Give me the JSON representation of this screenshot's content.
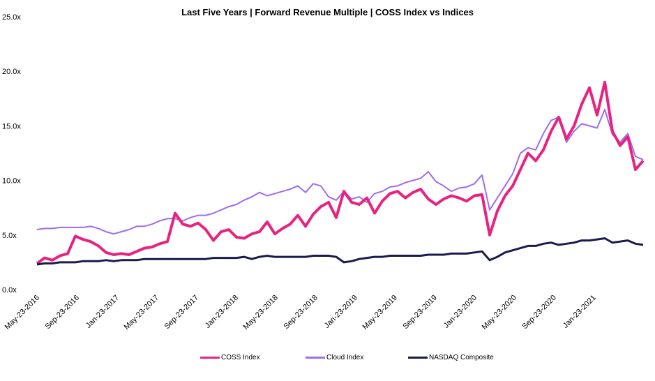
{
  "chart_data": {
    "type": "line",
    "title": "Last Five Years | Forward Revenue Multiple | COSS Index vs Indices",
    "y_tick_labels": [
      "0.0x",
      "5.0x",
      "10.0x",
      "15.0x",
      "20.0x",
      "25.0x"
    ],
    "ylim": [
      0,
      25
    ],
    "x_tick_labels": [
      "May-23-2016",
      "Sep-23-2016",
      "Jan-23-2017",
      "May-23-2017",
      "Sep-23-2017",
      "Jan-23-2018",
      "May-23-2018",
      "Sep-23-2018",
      "Jan-23-2019",
      "May-23-2019",
      "Sep-23-2019",
      "Jan-23-2020",
      "May-23-2020",
      "Sep-23-2020",
      "Jan-23-2021"
    ],
    "x_index_range": [
      0,
      61
    ],
    "series": [
      {
        "name": "COSS Index",
        "color": "#e8237f",
        "values": [
          2.4,
          2.9,
          2.7,
          3.1,
          3.3,
          4.9,
          4.6,
          4.4,
          4.0,
          3.4,
          3.2,
          3.3,
          3.2,
          3.5,
          3.8,
          3.9,
          4.2,
          4.4,
          7.0,
          6.0,
          5.8,
          6.1,
          5.5,
          4.5,
          5.3,
          5.5,
          4.8,
          4.7,
          5.1,
          5.3,
          6.2,
          5.1,
          5.6,
          6.0,
          6.8,
          5.8,
          6.9,
          7.6,
          8.0,
          6.6,
          9.0,
          8.0,
          7.8,
          8.4,
          7.0,
          8.1,
          8.8,
          9.0,
          8.4,
          8.9,
          9.2,
          8.3,
          7.8,
          8.3,
          8.6,
          8.4,
          8.1,
          8.6,
          8.7,
          5.0,
          7.2,
          8.6,
          9.5,
          11.0,
          12.5,
          11.8,
          12.8,
          14.5,
          15.8,
          13.8,
          15.0,
          17.0,
          18.5,
          16.0,
          19.0,
          14.5,
          13.2,
          14.0,
          11.0,
          11.8
        ]
      },
      {
        "name": "Cloud Index",
        "color": "#9b6cf5",
        "values": [
          5.5,
          5.6,
          5.6,
          5.7,
          5.7,
          5.7,
          5.7,
          5.8,
          5.6,
          5.3,
          5.1,
          5.3,
          5.5,
          5.8,
          5.8,
          6.0,
          6.3,
          6.5,
          6.5,
          6.3,
          6.6,
          6.8,
          6.8,
          7.0,
          7.3,
          7.6,
          7.8,
          8.2,
          8.5,
          8.9,
          8.6,
          8.8,
          9.0,
          9.2,
          9.5,
          8.9,
          9.7,
          9.5,
          8.5,
          8.2,
          9.0,
          8.3,
          8.5,
          8.0,
          8.8,
          9.0,
          9.4,
          9.5,
          9.8,
          10.0,
          10.2,
          10.8,
          9.9,
          9.5,
          9.0,
          9.3,
          9.4,
          9.7,
          10.5,
          7.3,
          8.4,
          9.5,
          10.6,
          12.5,
          13.0,
          12.8,
          14.3,
          15.5,
          15.8,
          13.5,
          14.5,
          15.2,
          15.0,
          14.8,
          16.5,
          14.2,
          13.5,
          14.3,
          12.2,
          11.9
        ]
      },
      {
        "name": "NASDAQ Composite",
        "color": "#1a1a4e",
        "values": [
          2.3,
          2.4,
          2.4,
          2.5,
          2.5,
          2.5,
          2.6,
          2.6,
          2.6,
          2.7,
          2.6,
          2.7,
          2.7,
          2.7,
          2.8,
          2.8,
          2.8,
          2.8,
          2.8,
          2.8,
          2.8,
          2.8,
          2.8,
          2.9,
          2.9,
          2.9,
          2.9,
          3.0,
          2.8,
          3.0,
          3.1,
          3.0,
          3.0,
          3.0,
          3.0,
          3.0,
          3.1,
          3.1,
          3.1,
          3.0,
          2.5,
          2.6,
          2.8,
          2.9,
          3.0,
          3.0,
          3.1,
          3.1,
          3.1,
          3.1,
          3.1,
          3.2,
          3.2,
          3.2,
          3.3,
          3.3,
          3.3,
          3.4,
          3.5,
          2.7,
          3.0,
          3.4,
          3.6,
          3.8,
          4.0,
          4.0,
          4.2,
          4.3,
          4.1,
          4.2,
          4.3,
          4.5,
          4.5,
          4.6,
          4.7,
          4.3,
          4.4,
          4.5,
          4.2,
          4.1
        ]
      }
    ],
    "grid": false,
    "legend_position": "bottom"
  }
}
